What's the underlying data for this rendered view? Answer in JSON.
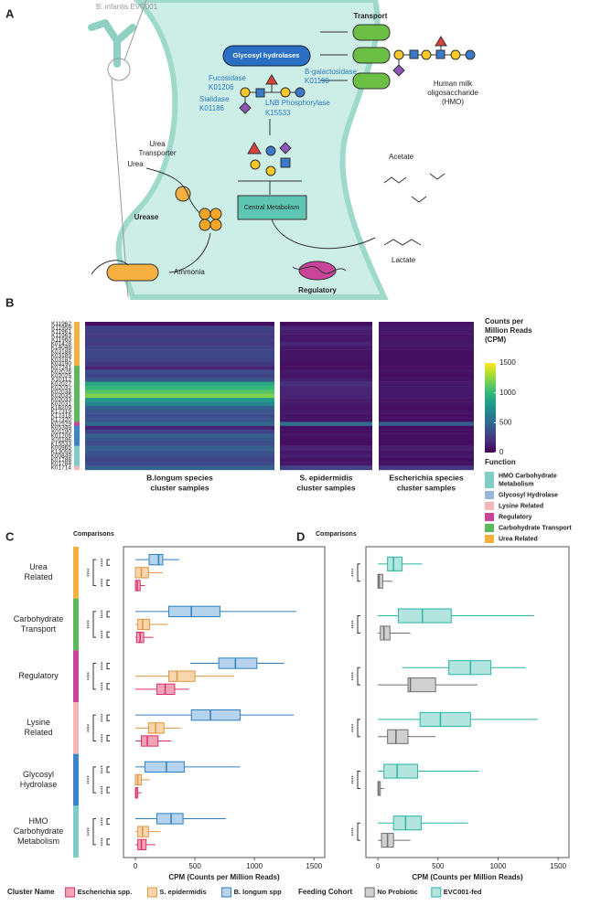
{
  "panel_labels": [
    "A",
    "B",
    "C",
    "D"
  ],
  "diagram": {
    "organism": "B. infantis EVC001",
    "transport": "Transport",
    "glycosyl_hydrolases": "Glycosyl hydrolases",
    "hmo": [
      "Human milk",
      "oligosaccharide",
      "(HMO)"
    ],
    "enzymes": [
      {
        "name": "Fucosidase",
        "ko": "K01206"
      },
      {
        "name": "Sialidase",
        "ko": "K01186"
      },
      {
        "name": "B-galactosidase",
        "ko": "K01190"
      },
      {
        "name": "LNB Phosphorylase",
        "ko": "K15533"
      }
    ],
    "urea_transporter": [
      "Urea",
      "Transporter"
    ],
    "urea": "Urea",
    "urease": "Urease",
    "ammonia": "Ammonia",
    "central_metabolism": "Central Metabolism",
    "acetate": "Acetate",
    "lactate": "Lactate",
    "regulatory": "Regulatory"
  },
  "chart_data": [
    {
      "type": "heatmap",
      "rows": [
        "K11962",
        "K11959",
        "K11961",
        "K11963",
        "K11960",
        "K01428",
        "K14048",
        "K03188",
        "K03189",
        "K03187",
        "K03190",
        "K07241",
        "K02026",
        "K02025",
        "K10112",
        "K02027",
        "K02032",
        "K02034",
        "K02035",
        "K02033",
        "K02031",
        "K16209",
        "K17319",
        "K17318",
        "K17320",
        "K02529",
        "K05349",
        "K01190",
        "K01206",
        "K01186",
        "K15533",
        "K00965",
        "K13059",
        "K00849",
        "K01788",
        "K01784",
        "K01714"
      ],
      "row_colors": [
        "#f5b041",
        "#f5b041",
        "#f5b041",
        "#f5b041",
        "#f5b041",
        "#f5b041",
        "#f5b041",
        "#f5b041",
        "#f5b041",
        "#f5b041",
        "#f5b041",
        "#5cb85c",
        "#5cb85c",
        "#5cb85c",
        "#5cb85c",
        "#5cb85c",
        "#5cb85c",
        "#5cb85c",
        "#5cb85c",
        "#5cb85c",
        "#5cb85c",
        "#5cb85c",
        "#5cb85c",
        "#5cb85c",
        "#5cb85c",
        "#c9449a",
        "#3a86c8",
        "#3a86c8",
        "#3a86c8",
        "#3a86c8",
        "#3a86c8",
        "#7fcdc4",
        "#7fcdc4",
        "#7fcdc4",
        "#7fcdc4",
        "#7fcdc4",
        "#f4b6b8"
      ],
      "columns": [
        {
          "name": [
            "B.longum species",
            "cluster samples"
          ],
          "values": [
            60,
            300,
            280,
            260,
            280,
            250,
            300,
            320,
            330,
            300,
            250,
            150,
            350,
            300,
            400,
            900,
            1000,
            1100,
            1200,
            800,
            700,
            450,
            400,
            350,
            400,
            500,
            150,
            300,
            450,
            400,
            350,
            450,
            400,
            350,
            300,
            350,
            450
          ]
        },
        {
          "name": [
            "S. epidermidis",
            "cluster samples"
          ],
          "values": [
            50,
            150,
            120,
            100,
            100,
            150,
            100,
            80,
            80,
            80,
            60,
            60,
            100,
            80,
            120,
            200,
            150,
            150,
            150,
            120,
            100,
            80,
            100,
            80,
            80,
            550,
            60,
            60,
            80,
            60,
            60,
            150,
            100,
            120,
            80,
            100,
            300
          ]
        },
        {
          "name": [
            "Escherichia species",
            "cluster samples"
          ],
          "values": [
            80,
            100,
            100,
            80,
            80,
            100,
            80,
            60,
            60,
            60,
            60,
            60,
            80,
            60,
            80,
            100,
            100,
            100,
            100,
            80,
            80,
            60,
            80,
            60,
            60,
            450,
            60,
            60,
            60,
            60,
            60,
            120,
            80,
            100,
            60,
            80,
            250
          ]
        }
      ],
      "colorbar_title": [
        "Counts per",
        "Million Reads",
        "(CPM)"
      ],
      "zlim": [
        0,
        1500
      ],
      "zticks": [
        0,
        500,
        1000,
        1500
      ],
      "colormap": [
        "#440154",
        "#482878",
        "#3e4989",
        "#31688e",
        "#26828e",
        "#1f9e89",
        "#35b779",
        "#6ece58",
        "#b5de2b",
        "#fde725"
      ],
      "function_title": "Function",
      "functions": [
        {
          "label_lines": [
            "HMO Carbohydrate",
            "Metabolism"
          ],
          "color": "#7fcdc4"
        },
        {
          "label_lines": [
            "Glycosyl Hydrolase"
          ],
          "color": "#9ab6dd"
        },
        {
          "label_lines": [
            "Lysine Related"
          ],
          "color": "#f4b6b8"
        },
        {
          "label_lines": [
            "Regulatory"
          ],
          "color": "#c9449a"
        },
        {
          "label_lines": [
            "Carbohydrate Transport"
          ],
          "color": "#5cb85c"
        },
        {
          "label_lines": [
            "Urea Related"
          ],
          "color": "#f5b041"
        }
      ]
    },
    {
      "type": "box",
      "categories": [
        [
          "Urea",
          "Related"
        ],
        [
          "Carbohydrate",
          "Transport"
        ],
        [
          "Regulatory"
        ],
        [
          "Lysine",
          "Related"
        ],
        [
          "Glycosyl",
          "Hydrolase"
        ],
        [
          "HMO",
          "Carbohydrate",
          "Metabolism"
        ]
      ],
      "category_colors": [
        "#f5b041",
        "#5cb85c",
        "#c9449a",
        "#f4b6b8",
        "#3a86c8",
        "#7fcdc4"
      ],
      "comparisons_title": "Comparisons",
      "comparison_labels": [
        [
          "****",
          "****",
          "****"
        ],
        [
          "****",
          "****",
          "****"
        ],
        [
          "****",
          "****",
          "****"
        ],
        [
          "****",
          "****",
          "****"
        ],
        [
          "****",
          "****",
          "****"
        ],
        [
          "****",
          "****",
          "****"
        ]
      ],
      "xlim": [
        -100,
        1590
      ],
      "xticks": [
        0,
        500,
        1000,
        1500
      ],
      "xlabel": "CPM (Counts per Million Reads)",
      "legend_title": "Cluster Name",
      "series": [
        {
          "name": "Escherichia spp.",
          "color": "#f2a3b6",
          "stroke": "#d6336c",
          "stats": [
            {
              "low": 0,
              "q1": 0,
              "median": 15,
              "q3": 40,
              "high": 80
            },
            {
              "low": 0,
              "q1": 10,
              "median": 40,
              "q3": 70,
              "high": 150
            },
            {
              "low": 0,
              "q1": 180,
              "median": 250,
              "q3": 330,
              "high": 450
            },
            {
              "low": 0,
              "q1": 50,
              "median": 100,
              "q3": 190,
              "high": 300
            },
            {
              "low": 0,
              "q1": 0,
              "median": 5,
              "q3": 20,
              "high": 50
            },
            {
              "low": 0,
              "q1": 20,
              "median": 50,
              "q3": 90,
              "high": 170
            }
          ]
        },
        {
          "name": "S. epidermidis",
          "color": "#f9d5ae",
          "stroke": "#e0953f",
          "stats": [
            {
              "low": 0,
              "q1": 0,
              "median": 50,
              "q3": 110,
              "high": 230
            },
            {
              "low": 0,
              "q1": 20,
              "median": 60,
              "q3": 120,
              "high": 270
            },
            {
              "low": 0,
              "q1": 280,
              "median": 350,
              "q3": 500,
              "high": 830
            },
            {
              "low": 0,
              "q1": 110,
              "median": 170,
              "q3": 240,
              "high": 380
            },
            {
              "low": 0,
              "q1": 0,
              "median": 20,
              "q3": 50,
              "high": 120
            },
            {
              "low": 0,
              "q1": 20,
              "median": 60,
              "q3": 110,
              "high": 210
            }
          ]
        },
        {
          "name": "B. longum spp",
          "color": "#b5d3ec",
          "stroke": "#2d7fbf",
          "stats": [
            {
              "low": 0,
              "q1": 115,
              "median": 195,
              "q3": 230,
              "high": 370
            },
            {
              "low": 0,
              "q1": 280,
              "median": 470,
              "q3": 710,
              "high": 1350
            },
            {
              "low": 460,
              "q1": 700,
              "median": 840,
              "q3": 1020,
              "high": 1250
            },
            {
              "low": 0,
              "q1": 470,
              "median": 630,
              "q3": 880,
              "high": 1330
            },
            {
              "low": 0,
              "q1": 80,
              "median": 260,
              "q3": 410,
              "high": 880
            },
            {
              "low": 0,
              "q1": 180,
              "median": 300,
              "q3": 400,
              "high": 760
            }
          ]
        }
      ]
    },
    {
      "type": "box",
      "comparisons_title": "Comparisons",
      "comparison_labels": [
        [
          "****"
        ],
        [
          "****"
        ],
        [
          "****"
        ],
        [
          "****"
        ],
        [
          "****"
        ],
        [
          "****"
        ]
      ],
      "xlim": [
        -100,
        1590
      ],
      "xticks": [
        0,
        500,
        1000,
        1500
      ],
      "xlabel": "CPM (Counts per Million Reads)",
      "legend_title": "Feeding Cohort",
      "series": [
        {
          "name": "No Probiotic",
          "color": "#d0d0d0",
          "stroke": "#6e6e6e",
          "stats": [
            {
              "low": 0,
              "q1": 0,
              "median": 10,
              "q3": 40,
              "high": 120
            },
            {
              "low": 0,
              "q1": 20,
              "median": 50,
              "q3": 100,
              "high": 270
            },
            {
              "low": 0,
              "q1": 250,
              "median": 270,
              "q3": 480,
              "high": 830
            },
            {
              "low": 0,
              "q1": 80,
              "median": 150,
              "q3": 250,
              "high": 480
            },
            {
              "low": 0,
              "q1": 0,
              "median": 5,
              "q3": 20,
              "high": 50
            },
            {
              "low": 0,
              "q1": 30,
              "median": 80,
              "q3": 130,
              "high": 270
            }
          ]
        },
        {
          "name": "EVC001-fed",
          "color": "#b3e5de",
          "stroke": "#2ab5a5",
          "stats": [
            {
              "low": 0,
              "q1": 80,
              "median": 130,
              "q3": 200,
              "high": 370
            },
            {
              "low": 0,
              "q1": 170,
              "median": 370,
              "q3": 610,
              "high": 1300
            },
            {
              "low": 200,
              "q1": 590,
              "median": 770,
              "q3": 940,
              "high": 1230
            },
            {
              "low": 0,
              "q1": 350,
              "median": 520,
              "q3": 770,
              "high": 1330
            },
            {
              "low": 0,
              "q1": 50,
              "median": 160,
              "q3": 330,
              "high": 840
            },
            {
              "low": 0,
              "q1": 130,
              "median": 230,
              "q3": 360,
              "high": 750
            }
          ]
        }
      ]
    }
  ]
}
